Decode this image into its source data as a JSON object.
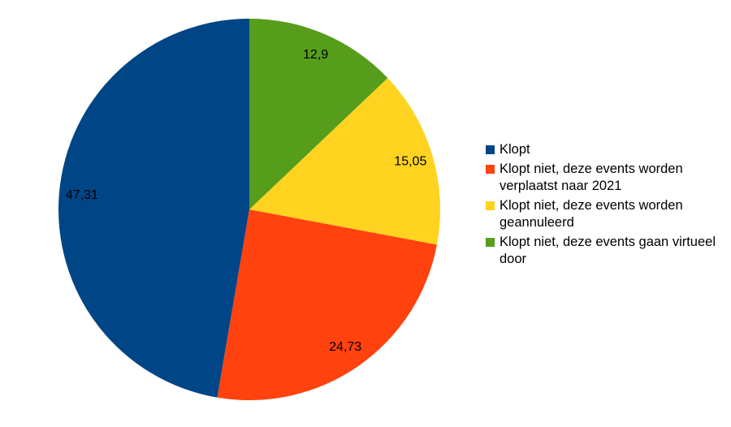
{
  "chart_data": {
    "type": "pie",
    "categories": [
      "Klopt",
      "Klopt niet, deze events worden verplaatst naar 2021",
      "Klopt niet, deze events worden geannuleerd",
      "Klopt niet, deze events gaan virtueel door"
    ],
    "values": [
      47.31,
      24.73,
      15.05,
      12.9
    ],
    "value_labels": [
      "47,31",
      "24,73",
      "15,05",
      "12,9"
    ],
    "colors": [
      "#004586",
      "#ff420e",
      "#ffd320",
      "#579d1c"
    ],
    "legend": "right"
  }
}
